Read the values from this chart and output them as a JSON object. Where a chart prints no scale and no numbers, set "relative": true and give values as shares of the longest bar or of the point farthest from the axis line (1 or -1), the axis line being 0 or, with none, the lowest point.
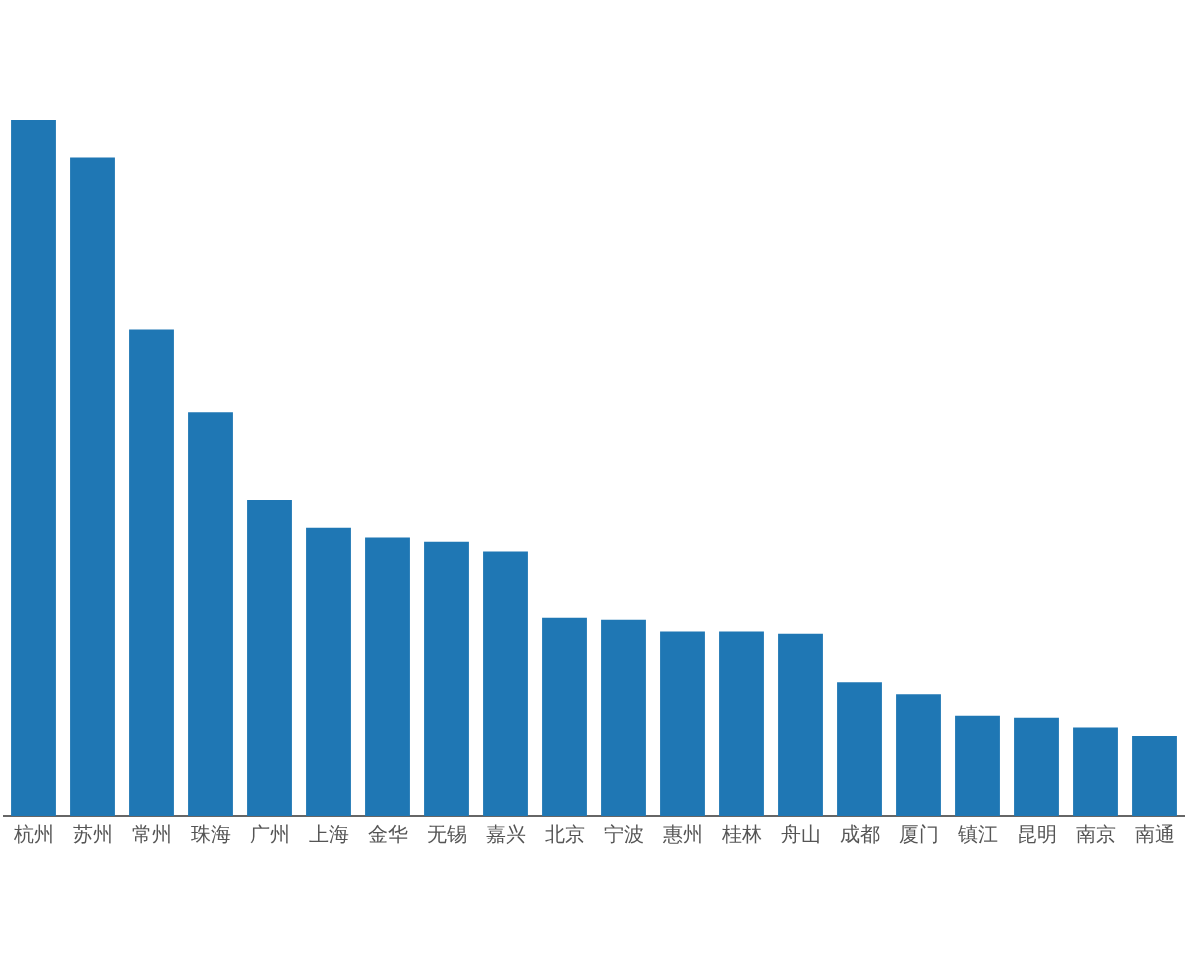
{
  "chart_data": {
    "type": "bar",
    "relative": true,
    "color": "#1f77b4",
    "categories": [
      "杭州",
      "苏州",
      "常州",
      "珠海",
      "广州",
      "上海",
      "金华",
      "无锡",
      "嘉兴",
      "北京",
      "宁波",
      "惠州",
      "桂林",
      "舟山",
      "成都",
      "厦门",
      "镇江",
      "昆明",
      "南京",
      "南通"
    ],
    "values": [
      1,
      0.946,
      0.699,
      0.58,
      0.454,
      0.414,
      0.4,
      0.394,
      0.38,
      0.285,
      0.282,
      0.265,
      0.265,
      0.262,
      0.192,
      0.175,
      0.144,
      0.141,
      0.127,
      0.115
    ]
  }
}
